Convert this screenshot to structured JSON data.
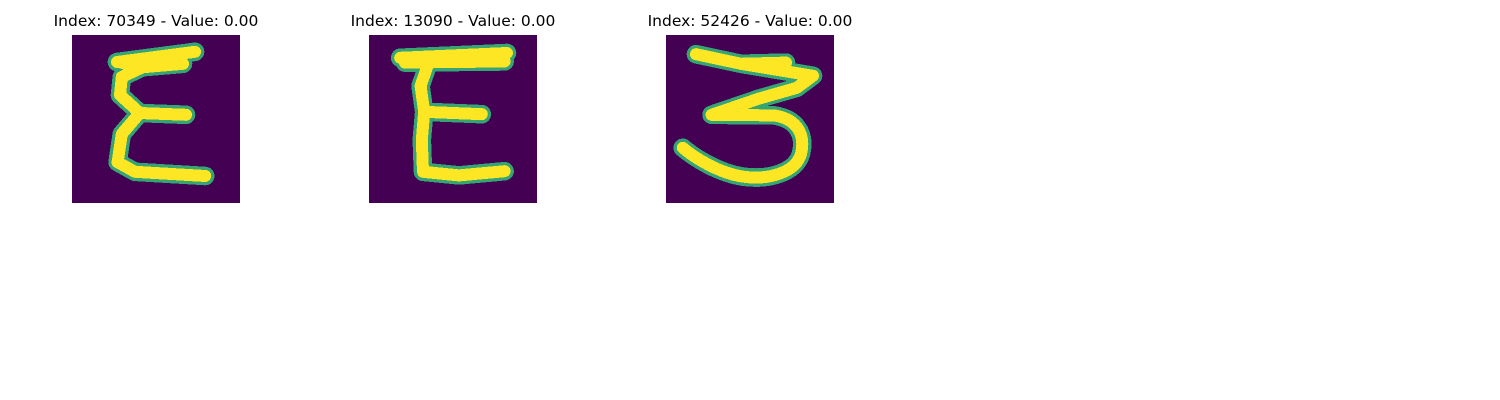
{
  "panels": [
    {
      "title": "Index: 70349 - Value: 0.00",
      "glyph": "E-form-1"
    },
    {
      "title": "Index: 13090 - Value: 0.00",
      "glyph": "E-form-2"
    },
    {
      "title": "Index: 52426 - Value: 0.00",
      "glyph": "3-form"
    }
  ],
  "colors": {
    "background": "#440154",
    "foreground": "#fde725",
    "edge": "#35b779",
    "edge_dark": "#31688e"
  }
}
